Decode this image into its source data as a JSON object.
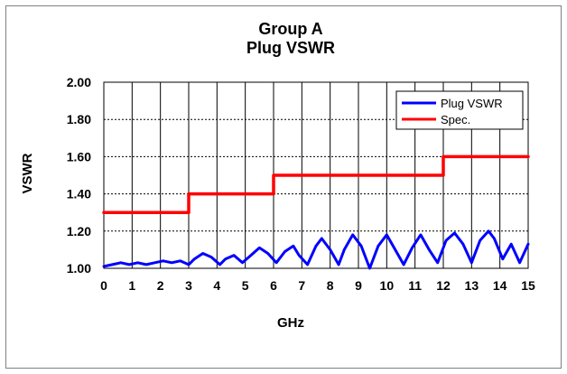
{
  "chart_data": {
    "type": "line",
    "title": "Group A",
    "subtitle": "Plug VSWR",
    "xlabel": "GHz",
    "ylabel": "VSWR",
    "xlim": [
      0,
      15
    ],
    "ylim": [
      1.0,
      2.0
    ],
    "x_ticks": [
      "0",
      "1",
      "2",
      "3",
      "4",
      "5",
      "6",
      "7",
      "8",
      "9",
      "10",
      "11",
      "12",
      "13",
      "14",
      "15"
    ],
    "y_ticks": [
      "1.00",
      "1.20",
      "1.40",
      "1.60",
      "1.80",
      "2.00"
    ],
    "grid": {
      "vertical": "solid",
      "horizontal": "dashed"
    },
    "legend": {
      "placement": "top-right"
    },
    "series": [
      {
        "name": "Plug VSWR",
        "color": "#0000ff",
        "x": [
          0,
          0.3,
          0.6,
          0.9,
          1.2,
          1.5,
          1.8,
          2.1,
          2.4,
          2.7,
          3.0,
          3.2,
          3.5,
          3.8,
          4.1,
          4.3,
          4.6,
          4.9,
          5.2,
          5.5,
          5.8,
          6.1,
          6.4,
          6.7,
          6.9,
          7.2,
          7.5,
          7.7,
          8.0,
          8.3,
          8.5,
          8.8,
          9.1,
          9.4,
          9.7,
          10.0,
          10.3,
          10.6,
          10.9,
          11.2,
          11.5,
          11.8,
          12.1,
          12.4,
          12.7,
          13.0,
          13.3,
          13.6,
          13.8,
          14.1,
          14.4,
          14.7,
          15.0
        ],
        "values": [
          1.01,
          1.02,
          1.03,
          1.02,
          1.03,
          1.02,
          1.03,
          1.04,
          1.03,
          1.04,
          1.02,
          1.05,
          1.08,
          1.06,
          1.02,
          1.05,
          1.07,
          1.03,
          1.07,
          1.11,
          1.08,
          1.03,
          1.09,
          1.12,
          1.07,
          1.02,
          1.12,
          1.16,
          1.1,
          1.02,
          1.1,
          1.18,
          1.12,
          1.0,
          1.12,
          1.18,
          1.1,
          1.02,
          1.11,
          1.18,
          1.1,
          1.03,
          1.15,
          1.19,
          1.13,
          1.03,
          1.15,
          1.2,
          1.16,
          1.05,
          1.13,
          1.03,
          1.13
        ]
      },
      {
        "name": "Spec.",
        "color": "#ff0000",
        "x": [
          0,
          3,
          3,
          6,
          6,
          12,
          12,
          15
        ],
        "values": [
          1.3,
          1.3,
          1.4,
          1.4,
          1.5,
          1.5,
          1.6,
          1.6
        ]
      }
    ]
  }
}
